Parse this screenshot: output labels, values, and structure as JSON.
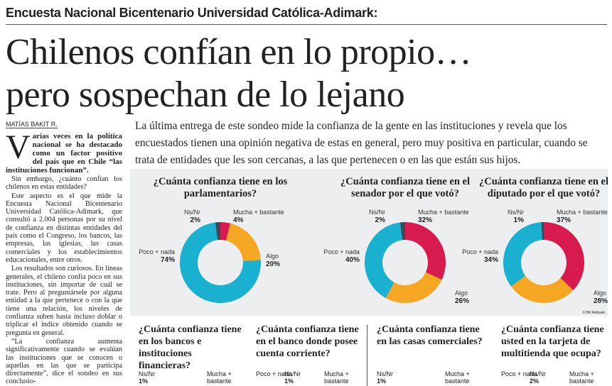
{
  "header": {
    "kicker": "Encuesta Nacional Bicentenario Universidad Católica-Adimark:",
    "headline_1": "Chilenos confían en lo propio…",
    "headline_2": "pero sospechan de lo lejano",
    "byline": "MATÍAS BAKIT R.",
    "intro": "La última entrega de este sondeo mide la confianza de la gente en las instituciones y revela que los encuestados tienen una opinión negativa de estas en general, pero muy positiva en particular, cuando se trata de entidades que les son cercanas, a las que pertenecen o en las que están sus hijos."
  },
  "article": {
    "lede": "Varias veces en la política nacional se ha destacado como un factor positivo del país que en Chile “las instituciones funcionan”.",
    "paragraphs": [
      "Sin embargo, ¿cuánto confían los chilenos en estas entidades?",
      "Este aspecto es el que mide la Encuesta Nacional Bicentenario Universidad Católica-Adimark, que consultó a 2.004 personas por su nivel de confianza en distintas entidades del país como el Congreso, los bancos, las empresas, las iglesias, las casas comerciales y los establecimientos educacionales, entre otros.",
      "Los resultados son curiosos. En líneas generales, el chileno confía poco en sus instituciones, sin importar de cuál se trate. Pero al preguntársele por alguna entidad a la que pertenece o con la que tiene una relación, los niveles de confianza suben hasta incluso doblar o triplicar el índice obtenido cuando se pregunta en general.",
      "“La confianza aumenta significativamente cuando se evalúan las instituciones que se conocen o aquellas en las que se participa directamente”, dice el sondeo en sus conclusio-"
    ]
  },
  "chart_data": [
    {
      "type": "donut",
      "title": "¿Cuánta confianza tiene en los parlamentarios?",
      "categories": [
        "Mucha + bastante",
        "Algo",
        "Poco + nada",
        "Ns/Nr"
      ],
      "values": [
        4,
        20,
        74,
        2
      ],
      "value_labels": [
        "4%",
        "20%",
        "74%",
        "2%"
      ],
      "colors": [
        "#d81b4f",
        "#f5a623",
        "#1ab0cf",
        "#3b4a5a"
      ]
    },
    {
      "type": "donut",
      "title": "¿Cuánta confianza tiene en el senador por el que votó?",
      "categories": [
        "Mucha + bastante",
        "Algo",
        "Poco + nada",
        "Ns/Nr"
      ],
      "values": [
        32,
        26,
        40,
        2
      ],
      "value_labels": [
        "32%",
        "26%",
        "40%",
        "2%"
      ],
      "colors": [
        "#d81b4f",
        "#f5a623",
        "#1ab0cf",
        "#3b4a5a"
      ]
    },
    {
      "type": "donut",
      "title": "¿Cuánta confianza tiene en el diputado por el que votó?",
      "categories": [
        "Mucha + bastante",
        "Algo",
        "Poco + nada",
        "Ns/Nr"
      ],
      "values": [
        37,
        28,
        34,
        1
      ],
      "value_labels": [
        "37%",
        "28%",
        "34%",
        "1%"
      ],
      "colors": [
        "#d81b4f",
        "#f5a623",
        "#1ab0cf",
        "#3b4a5a"
      ]
    }
  ],
  "source": "© BK Adimark",
  "bottom_questions": [
    {
      "question": "¿Cuánta confianza tiene en los bancos e instituciones financieras?",
      "labels": [
        "Ns/Nr",
        "1%",
        "Mucha + bastante"
      ]
    },
    {
      "question": "¿Cuánta confianza tiene en el banco donde posee cuenta corriente?",
      "labels": [
        "Poco + nada",
        "Ns/Nr",
        "1%",
        "Mucha + bastante"
      ]
    },
    {
      "question": "¿Cuánta confianza tiene en las casas comerciales?",
      "labels": [
        "Ns/Nr",
        "1%",
        "Mucha + bastante"
      ]
    },
    {
      "question": "¿Cuánta confianza tiene usted en la tarjeta de multitienda que ocupa?",
      "labels": [
        "Poco + nada",
        "Ns/Nr",
        "2%",
        "Mucha + bastante"
      ]
    }
  ]
}
